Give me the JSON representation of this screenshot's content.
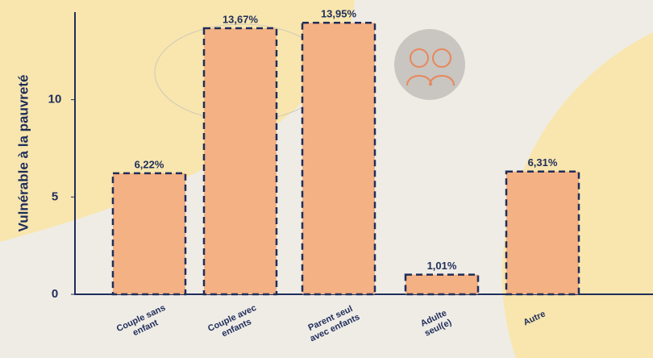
{
  "chart_data": {
    "type": "bar",
    "y_label": "Vulnérable à la pauvreté",
    "categories": [
      "Couple sans enfant",
      "Couple avec enfants",
      "Parent seul avec enfants",
      "Adulte seul(e)",
      "Autre"
    ],
    "values": [
      6.22,
      13.67,
      13.95,
      1.01,
      6.31
    ],
    "value_labels": [
      "6,22%",
      "13,67%",
      "13,95%",
      "1,01%",
      "6,31%"
    ],
    "color": "#f4b183",
    "ylim": [
      0,
      14.5
    ],
    "yticks": [
      0,
      5,
      10
    ]
  }
}
